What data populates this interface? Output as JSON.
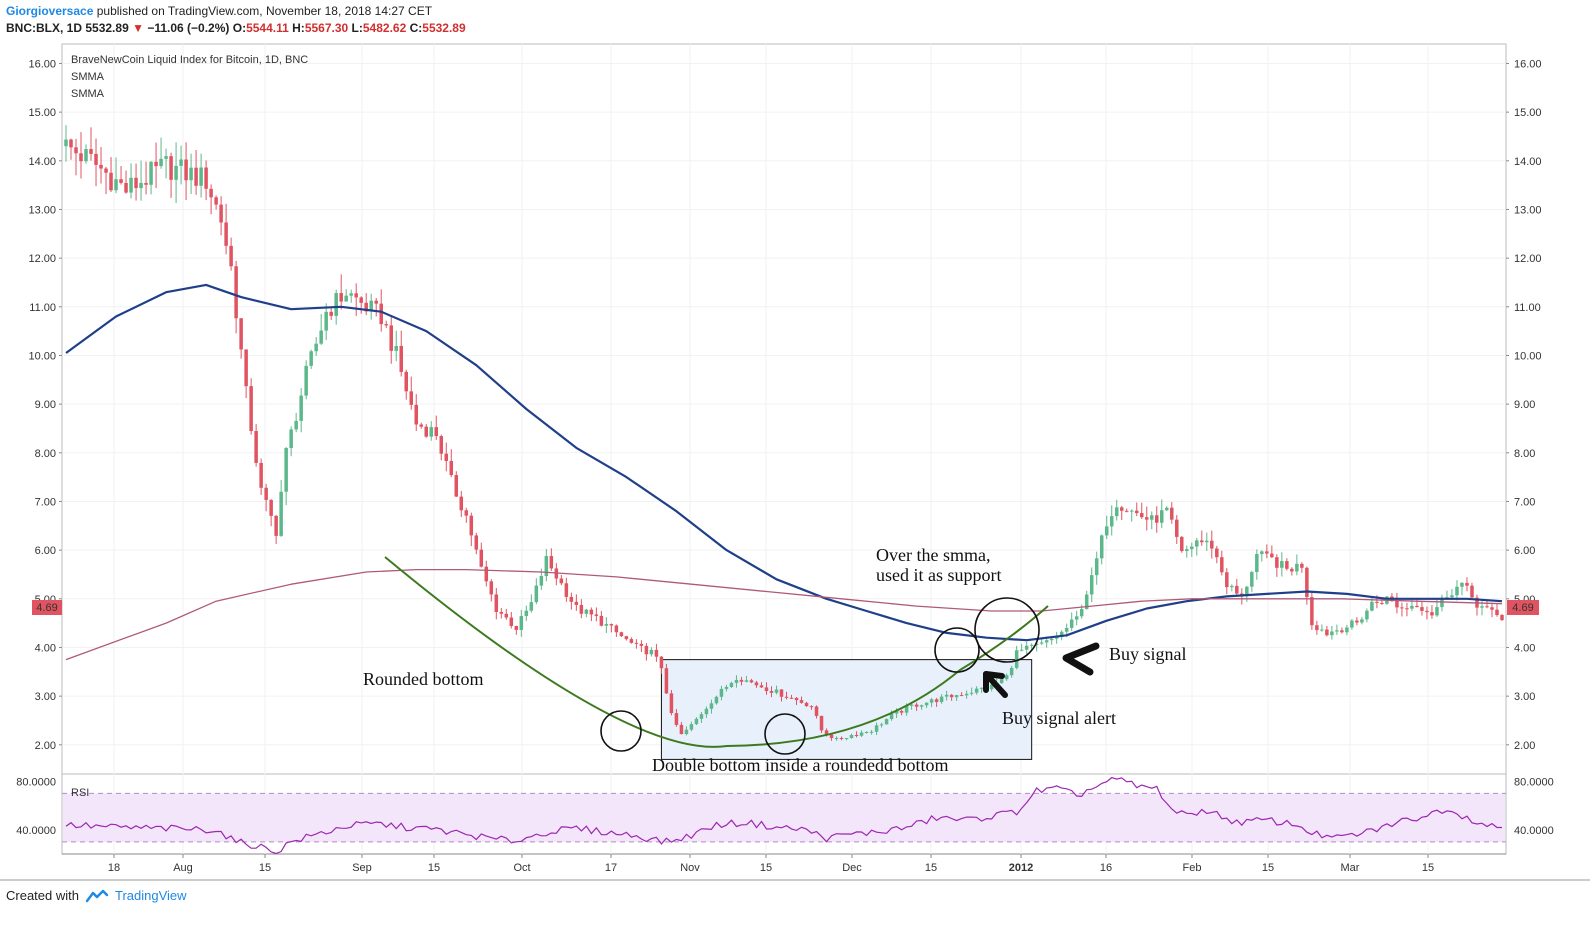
{
  "header": {
    "author": "Giorgioversace",
    "published": "published on TradingView.com, November 18, 2018 14:27 CET",
    "symbol": "BNC:BLX, 1D",
    "last": "5532.89",
    "change": "−11.06 (−0.2%)",
    "ohlc": {
      "o_label": "O:",
      "o": "5544.11",
      "h_label": "H:",
      "h": "5567.30",
      "l_label": "L:",
      "l": "5482.62",
      "c_label": "C:",
      "c": "5532.89"
    }
  },
  "legend": {
    "title": "BraveNewCoin Liquid Index for Bitcoin, 1D, BNC",
    "ind1": "SMMA",
    "ind2": "SMMA"
  },
  "footer": {
    "created": "Created with",
    "brand": "TradingView"
  },
  "colors": {
    "up": "#5cb88a",
    "down": "#e05461",
    "smma_fast": "#1f3f8a",
    "smma_slow": "#b05a78",
    "curve": "#3d7a1f",
    "rsi": "#9c27b0",
    "rsi_band": "#f3e5fa",
    "box": "#e8f0fb"
  },
  "chart_data": [
    {
      "type": "candlestick",
      "title": "BraveNewCoin Liquid Index for Bitcoin, 1D, BNC",
      "ylim": [
        1.4,
        16.4
      ],
      "y_ticks": [
        "16.00",
        "15.00",
        "14.00",
        "13.00",
        "12.00",
        "11.00",
        "10.00",
        "9.00",
        "8.00",
        "7.00",
        "6.00",
        "5.00",
        "4.00",
        "3.00",
        "2.00"
      ],
      "x_ticks": [
        "18",
        "Aug",
        "15",
        "Sep",
        "15",
        "Oct",
        "17",
        "Nov",
        "15",
        "Dec",
        "15",
        "2012",
        "16",
        "Feb",
        "15",
        "Mar",
        "15"
      ],
      "last_price_label": "4.69",
      "price_path": [
        [
          0,
          14.3
        ],
        [
          5,
          14.0
        ],
        [
          12,
          13.4
        ],
        [
          20,
          13.9
        ],
        [
          28,
          13.6
        ],
        [
          31,
          12.8
        ],
        [
          33,
          11.8
        ],
        [
          36,
          9.2
        ],
        [
          39,
          7.2
        ],
        [
          42,
          6.4
        ],
        [
          44,
          8.0
        ],
        [
          48,
          9.6
        ],
        [
          52,
          10.9
        ],
        [
          56,
          11.3
        ],
        [
          60,
          11.0
        ],
        [
          63,
          10.8
        ],
        [
          66,
          10.0
        ],
        [
          70,
          8.6
        ],
        [
          74,
          8.4
        ],
        [
          77,
          7.4
        ],
        [
          80,
          6.7
        ],
        [
          83,
          5.6
        ],
        [
          86,
          4.8
        ],
        [
          90,
          4.4
        ],
        [
          93,
          4.9
        ],
        [
          96,
          5.8
        ],
        [
          99,
          5.3
        ],
        [
          102,
          4.8
        ],
        [
          106,
          4.6
        ],
        [
          110,
          4.3
        ],
        [
          114,
          4.0
        ],
        [
          117,
          3.9
        ],
        [
          119,
          3.6
        ],
        [
          121,
          2.6
        ],
        [
          123,
          2.2
        ],
        [
          125,
          2.4
        ],
        [
          129,
          2.9
        ],
        [
          134,
          3.4
        ],
        [
          139,
          3.2
        ],
        [
          144,
          3.0
        ],
        [
          149,
          2.8
        ],
        [
          151,
          2.3
        ],
        [
          154,
          2.1
        ],
        [
          157,
          2.2
        ],
        [
          161,
          2.3
        ],
        [
          165,
          2.6
        ],
        [
          169,
          2.8
        ],
        [
          173,
          2.9
        ],
        [
          177,
          3.0
        ],
        [
          181,
          3.1
        ],
        [
          185,
          3.2
        ],
        [
          188,
          3.4
        ],
        [
          190,
          3.9
        ],
        [
          193,
          4.0
        ],
        [
          196,
          4.1
        ],
        [
          199,
          4.3
        ],
        [
          202,
          4.6
        ],
        [
          205,
          5.4
        ],
        [
          208,
          6.6
        ],
        [
          210,
          7.0
        ],
        [
          213,
          6.8
        ],
        [
          217,
          6.6
        ],
        [
          220,
          6.8
        ],
        [
          223,
          5.9
        ],
        [
          226,
          6.2
        ],
        [
          229,
          6.1
        ],
        [
          232,
          5.3
        ],
        [
          235,
          5.0
        ],
        [
          238,
          5.9
        ],
        [
          241,
          5.8
        ],
        [
          244,
          5.6
        ],
        [
          247,
          5.7
        ],
        [
          249,
          4.5
        ],
        [
          252,
          4.3
        ],
        [
          255,
          4.4
        ],
        [
          258,
          4.5
        ],
        [
          261,
          4.9
        ],
        [
          264,
          5.0
        ],
        [
          267,
          4.8
        ],
        [
          270,
          4.9
        ],
        [
          273,
          4.7
        ],
        [
          276,
          5.1
        ],
        [
          279,
          5.3
        ],
        [
          282,
          4.9
        ],
        [
          285,
          4.7
        ],
        [
          287,
          4.6
        ]
      ],
      "series": [
        {
          "name": "SMMA",
          "values_path": [
            [
              0,
              10.05
            ],
            [
              10,
              10.8
            ],
            [
              20,
              11.3
            ],
            [
              28,
              11.45
            ],
            [
              35,
              11.2
            ],
            [
              45,
              10.95
            ],
            [
              55,
              11.0
            ],
            [
              63,
              10.9
            ],
            [
              72,
              10.5
            ],
            [
              82,
              9.8
            ],
            [
              92,
              8.9
            ],
            [
              102,
              8.1
            ],
            [
              112,
              7.5
            ],
            [
              122,
              6.8
            ],
            [
              132,
              6.0
            ],
            [
              142,
              5.4
            ],
            [
              152,
              5.0
            ],
            [
              160,
              4.75
            ],
            [
              168,
              4.5
            ],
            [
              176,
              4.3
            ],
            [
              184,
              4.2
            ],
            [
              192,
              4.15
            ],
            [
              200,
              4.25
            ],
            [
              208,
              4.55
            ],
            [
              216,
              4.8
            ],
            [
              224,
              4.95
            ],
            [
              232,
              5.05
            ],
            [
              240,
              5.1
            ],
            [
              248,
              5.15
            ],
            [
              256,
              5.1
            ],
            [
              264,
              5.0
            ],
            [
              272,
              5.0
            ],
            [
              280,
              5.0
            ],
            [
              287,
              4.95
            ]
          ]
        },
        {
          "name": "SMMA",
          "values_path": [
            [
              0,
              3.75
            ],
            [
              20,
              4.5
            ],
            [
              30,
              4.95
            ],
            [
              45,
              5.3
            ],
            [
              60,
              5.55
            ],
            [
              70,
              5.6
            ],
            [
              80,
              5.6
            ],
            [
              95,
              5.55
            ],
            [
              110,
              5.45
            ],
            [
              125,
              5.3
            ],
            [
              140,
              5.15
            ],
            [
              155,
              5.0
            ],
            [
              170,
              4.85
            ],
            [
              185,
              4.75
            ],
            [
              195,
              4.75
            ],
            [
              205,
              4.85
            ],
            [
              215,
              4.95
            ],
            [
              225,
              5.0
            ],
            [
              240,
              5.0
            ],
            [
              255,
              5.0
            ],
            [
              270,
              4.95
            ],
            [
              287,
              4.9
            ]
          ]
        }
      ],
      "annotations": {
        "over_smma_line1": "Over the smma,",
        "over_smma_line2": "used it as support",
        "buy_signal": "Buy signal",
        "buy_signal_alert": "Buy signal alert",
        "rounded_bottom": "Rounded bottom",
        "double_bottom": "Double bottom inside a roundedd bottom"
      }
    },
    {
      "type": "line",
      "title": "RSI",
      "ylim": [
        20,
        86
      ],
      "y_ticks": [
        "80.0000",
        "40.0000"
      ],
      "bands": [
        70,
        30
      ],
      "values_path": [
        [
          0,
          44
        ],
        [
          10,
          42
        ],
        [
          20,
          41
        ],
        [
          30,
          40
        ],
        [
          34,
          30
        ],
        [
          38,
          27
        ],
        [
          42,
          22
        ],
        [
          45,
          30
        ],
        [
          50,
          36
        ],
        [
          56,
          43
        ],
        [
          62,
          45
        ],
        [
          68,
          42
        ],
        [
          74,
          40
        ],
        [
          80,
          36
        ],
        [
          86,
          32
        ],
        [
          90,
          31
        ],
        [
          96,
          38
        ],
        [
          102,
          41
        ],
        [
          108,
          38
        ],
        [
          114,
          35
        ],
        [
          120,
          30
        ],
        [
          124,
          34
        ],
        [
          130,
          44
        ],
        [
          136,
          46
        ],
        [
          142,
          42
        ],
        [
          148,
          40
        ],
        [
          152,
          33
        ],
        [
          156,
          36
        ],
        [
          162,
          38
        ],
        [
          168,
          42
        ],
        [
          174,
          50
        ],
        [
          180,
          48
        ],
        [
          186,
          52
        ],
        [
          190,
          55
        ],
        [
          194,
          72
        ],
        [
          198,
          74
        ],
        [
          202,
          68
        ],
        [
          206,
          76
        ],
        [
          210,
          82
        ],
        [
          214,
          76
        ],
        [
          218,
          74
        ],
        [
          222,
          52
        ],
        [
          228,
          56
        ],
        [
          234,
          46
        ],
        [
          240,
          48
        ],
        [
          246,
          44
        ],
        [
          250,
          36
        ],
        [
          254,
          33
        ],
        [
          260,
          38
        ],
        [
          266,
          46
        ],
        [
          272,
          52
        ],
        [
          276,
          58
        ],
        [
          280,
          50
        ],
        [
          284,
          44
        ],
        [
          287,
          42
        ]
      ]
    }
  ]
}
